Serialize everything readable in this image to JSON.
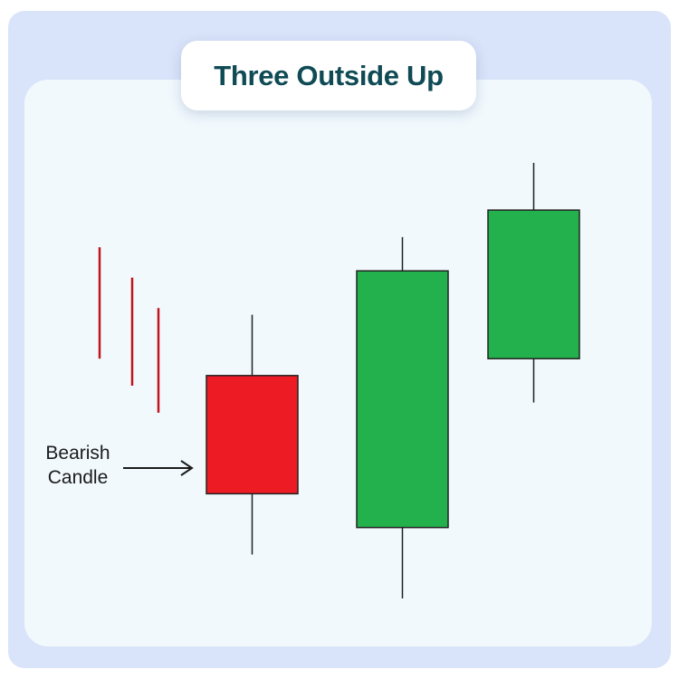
{
  "title": "Three Outside Up",
  "annotation": {
    "line1": "Bearish",
    "line2": "Candle"
  },
  "colors": {
    "bearish": "#ed1c24",
    "bullish": "#22b14c",
    "trend_lines": "#c0151d",
    "title_text": "#0f4a55",
    "outer_bg": "#d9e4fa",
    "panel_bg": "#f1f9fd"
  },
  "candles": [
    {
      "type": "bearish",
      "high": 84,
      "open": 66,
      "close": 31,
      "low": 13
    },
    {
      "type": "bullish",
      "high": 107,
      "open": 21,
      "close": 97,
      "low": 0
    },
    {
      "type": "bullish",
      "high": 129,
      "open": 71,
      "close": 115,
      "low": 58
    }
  ],
  "prior_trend_lines": [
    {
      "top": 104,
      "bottom": 71
    },
    {
      "top": 95,
      "bottom": 63
    },
    {
      "top": 86,
      "bottom": 55
    }
  ]
}
